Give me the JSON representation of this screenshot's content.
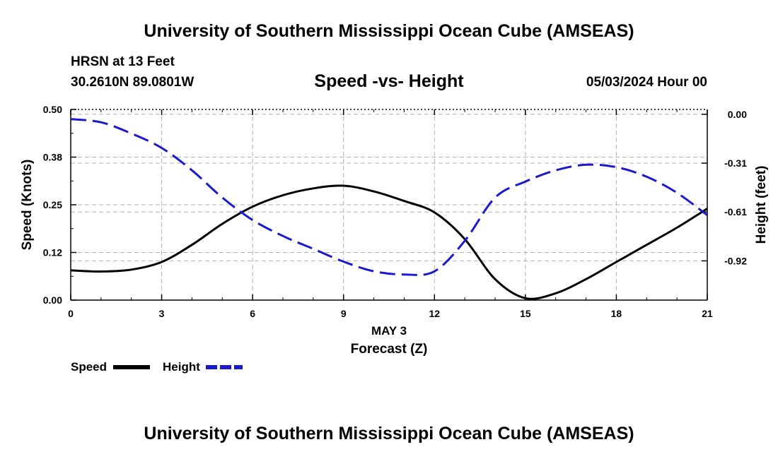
{
  "page": {
    "title_top": "University of Southern Mississippi Ocean Cube (AMSEAS)",
    "title_bottom": "University of Southern Mississippi Ocean Cube (AMSEAS)",
    "station": "HRSN at 13 Feet",
    "coords": "30.2610N  89.0801W",
    "subtitle": "Speed -vs- Height",
    "datetime": "05/03/2024 Hour 00"
  },
  "legend": {
    "speed_label": "Speed",
    "height_label": "Height",
    "speed_color": "#000000",
    "height_color": "#1a1acc"
  },
  "chart_data": {
    "type": "line",
    "title": "Speed -vs- Height",
    "xlabel": "Forecast (Z)",
    "xsublabel": "MAY 3",
    "ylabel": "Speed (Knots)",
    "y2label": "Height (feet)",
    "xlim": [
      0,
      21
    ],
    "ylim": [
      0,
      0.5
    ],
    "y2lim": [
      -1.16,
      0.03
    ],
    "grid": true,
    "x_ticks": [
      0,
      3,
      6,
      9,
      12,
      15,
      18,
      21
    ],
    "x_tick_labels": [
      "0",
      "3",
      "6",
      "9",
      "12",
      "15",
      "18",
      "21"
    ],
    "y_ticks": [
      0,
      0.125,
      0.25,
      0.375,
      0.5
    ],
    "y_tick_labels": [
      "0.00",
      "0.12",
      "0.25",
      "0.38",
      "0.50"
    ],
    "y2_ticks": [
      0,
      -0.305,
      -0.61,
      -0.915
    ],
    "y2_tick_labels": [
      "0.00",
      "-0.31",
      "-0.61",
      "-0.92"
    ],
    "x": [
      0,
      1,
      2,
      3,
      4,
      5,
      6,
      7,
      8,
      9,
      10,
      11,
      12,
      13,
      14,
      15,
      16,
      17,
      18,
      19,
      20,
      21
    ],
    "series": [
      {
        "name": "Speed",
        "axis": "left",
        "style": "solid",
        "color": "#000000",
        "values": [
          0.078,
          0.075,
          0.08,
          0.1,
          0.145,
          0.2,
          0.245,
          0.275,
          0.293,
          0.3,
          0.285,
          0.26,
          0.23,
          0.16,
          0.055,
          0.005,
          0.018,
          0.055,
          0.1,
          0.145,
          0.19,
          0.24
        ]
      },
      {
        "name": "Height",
        "axis": "right",
        "style": "dashed",
        "color": "#1a1acc",
        "values": [
          -0.03,
          -0.05,
          -0.12,
          -0.21,
          -0.35,
          -0.52,
          -0.66,
          -0.76,
          -0.84,
          -0.92,
          -0.98,
          -1.0,
          -0.98,
          -0.79,
          -0.52,
          -0.42,
          -0.35,
          -0.315,
          -0.33,
          -0.39,
          -0.49,
          -0.63
        ]
      }
    ]
  }
}
